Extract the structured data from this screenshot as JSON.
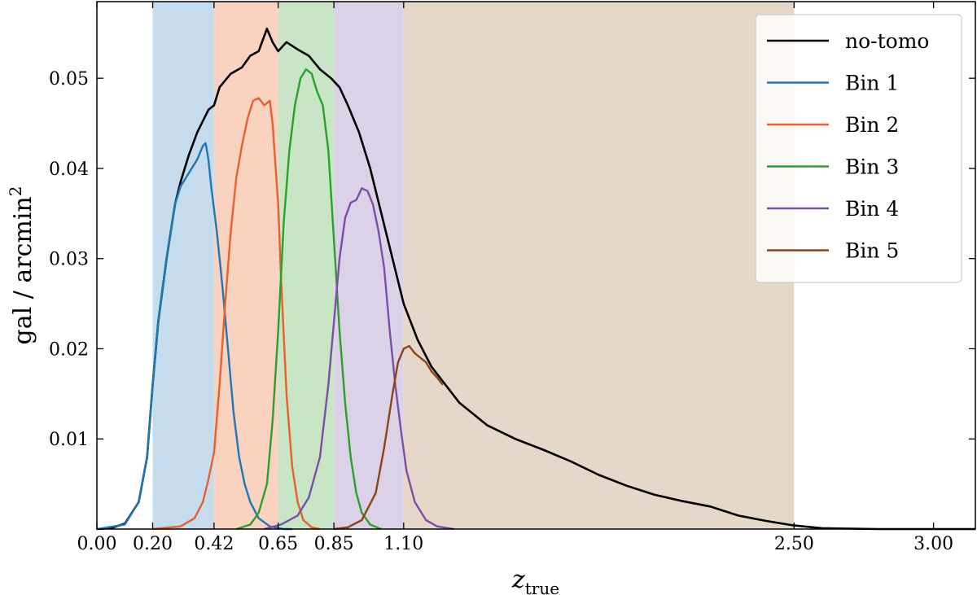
{
  "chart_data": {
    "type": "line",
    "xlabel_main": "z",
    "xlabel_sub": "true",
    "ylabel_main": "gal / arcmin",
    "ylabel_sup": "2",
    "xlim": [
      0.0,
      3.15
    ],
    "ylim": [
      0.0,
      0.0585
    ],
    "x_ticks": [
      0.0,
      0.2,
      0.42,
      0.65,
      0.85,
      1.1,
      2.5,
      3.0
    ],
    "x_tick_labels": [
      "0.00",
      "0.20",
      "0.42",
      "0.65",
      "0.85",
      "1.10",
      "2.50",
      "3.00"
    ],
    "y_ticks": [
      0.01,
      0.02,
      0.03,
      0.04,
      0.05
    ],
    "y_tick_labels": [
      "0.01",
      "0.02",
      "0.03",
      "0.04",
      "0.05"
    ],
    "legend_position": "top-right",
    "bands": [
      {
        "from": 0.2,
        "to": 0.42,
        "color": "#c4dcee"
      },
      {
        "from": 0.42,
        "to": 0.65,
        "color": "#f9d2c0"
      },
      {
        "from": 0.65,
        "to": 0.85,
        "color": "#c8e6c5"
      },
      {
        "from": 0.85,
        "to": 1.1,
        "color": "#dcd2e8"
      },
      {
        "from": 1.1,
        "to": 2.5,
        "color": "#e6d8c8"
      }
    ],
    "series": [
      {
        "name": "no-tomo",
        "color": "#000000",
        "points": [
          [
            0.0,
            0.0
          ],
          [
            0.05,
            0.0001
          ],
          [
            0.1,
            0.0006
          ],
          [
            0.15,
            0.003
          ],
          [
            0.18,
            0.008
          ],
          [
            0.2,
            0.016
          ],
          [
            0.22,
            0.023
          ],
          [
            0.25,
            0.03
          ],
          [
            0.28,
            0.036
          ],
          [
            0.3,
            0.0385
          ],
          [
            0.33,
            0.0415
          ],
          [
            0.36,
            0.044
          ],
          [
            0.4,
            0.0465
          ],
          [
            0.42,
            0.047
          ],
          [
            0.44,
            0.049
          ],
          [
            0.48,
            0.0505
          ],
          [
            0.52,
            0.0512
          ],
          [
            0.55,
            0.0525
          ],
          [
            0.58,
            0.053
          ],
          [
            0.61,
            0.0555
          ],
          [
            0.63,
            0.054
          ],
          [
            0.65,
            0.053
          ],
          [
            0.68,
            0.054
          ],
          [
            0.72,
            0.0532
          ],
          [
            0.76,
            0.0525
          ],
          [
            0.8,
            0.051
          ],
          [
            0.84,
            0.05
          ],
          [
            0.87,
            0.049
          ],
          [
            0.9,
            0.047
          ],
          [
            0.94,
            0.044
          ],
          [
            0.98,
            0.04
          ],
          [
            1.02,
            0.035
          ],
          [
            1.06,
            0.03
          ],
          [
            1.1,
            0.025
          ],
          [
            1.15,
            0.021
          ],
          [
            1.2,
            0.018
          ],
          [
            1.25,
            0.016
          ],
          [
            1.3,
            0.014
          ],
          [
            1.4,
            0.0115
          ],
          [
            1.5,
            0.01
          ],
          [
            1.6,
            0.0088
          ],
          [
            1.7,
            0.0075
          ],
          [
            1.8,
            0.006
          ],
          [
            1.9,
            0.0048
          ],
          [
            2.0,
            0.0038
          ],
          [
            2.1,
            0.0031
          ],
          [
            2.2,
            0.0025
          ],
          [
            2.3,
            0.0015
          ],
          [
            2.4,
            0.0009
          ],
          [
            2.5,
            0.0004
          ],
          [
            2.6,
            0.0001
          ],
          [
            2.8,
            0.0
          ],
          [
            3.15,
            0.0
          ]
        ]
      },
      {
        "name": "Bin 1",
        "color": "#1f77b4",
        "points": [
          [
            0.0,
            0.0
          ],
          [
            0.1,
            0.0005
          ],
          [
            0.15,
            0.003
          ],
          [
            0.18,
            0.008
          ],
          [
            0.2,
            0.016
          ],
          [
            0.22,
            0.023
          ],
          [
            0.25,
            0.03
          ],
          [
            0.28,
            0.036
          ],
          [
            0.3,
            0.038
          ],
          [
            0.33,
            0.0395
          ],
          [
            0.36,
            0.041
          ],
          [
            0.38,
            0.0425
          ],
          [
            0.39,
            0.0428
          ],
          [
            0.4,
            0.041
          ],
          [
            0.41,
            0.038
          ],
          [
            0.43,
            0.033
          ],
          [
            0.45,
            0.027
          ],
          [
            0.47,
            0.02
          ],
          [
            0.49,
            0.013
          ],
          [
            0.51,
            0.008
          ],
          [
            0.53,
            0.005
          ],
          [
            0.55,
            0.003
          ],
          [
            0.58,
            0.0012
          ],
          [
            0.62,
            0.0003
          ],
          [
            0.67,
            0.0
          ],
          [
            0.7,
            0.0
          ]
        ]
      },
      {
        "name": "Bin 2",
        "color": "#e8602c",
        "points": [
          [
            0.2,
            0.0
          ],
          [
            0.3,
            0.0003
          ],
          [
            0.35,
            0.0012
          ],
          [
            0.38,
            0.003
          ],
          [
            0.4,
            0.0055
          ],
          [
            0.42,
            0.0085
          ],
          [
            0.44,
            0.016
          ],
          [
            0.46,
            0.025
          ],
          [
            0.48,
            0.033
          ],
          [
            0.5,
            0.039
          ],
          [
            0.52,
            0.0425
          ],
          [
            0.54,
            0.0455
          ],
          [
            0.56,
            0.0475
          ],
          [
            0.58,
            0.0478
          ],
          [
            0.6,
            0.047
          ],
          [
            0.62,
            0.0475
          ],
          [
            0.63,
            0.045
          ],
          [
            0.65,
            0.036
          ],
          [
            0.66,
            0.028
          ],
          [
            0.68,
            0.015
          ],
          [
            0.7,
            0.007
          ],
          [
            0.72,
            0.003
          ],
          [
            0.74,
            0.001
          ],
          [
            0.77,
            0.0002
          ],
          [
            0.8,
            0.0
          ]
        ]
      },
      {
        "name": "Bin 3",
        "color": "#2ca02c",
        "points": [
          [
            0.5,
            0.0
          ],
          [
            0.55,
            0.0005
          ],
          [
            0.58,
            0.0018
          ],
          [
            0.61,
            0.005
          ],
          [
            0.63,
            0.012
          ],
          [
            0.65,
            0.022
          ],
          [
            0.67,
            0.034
          ],
          [
            0.69,
            0.042
          ],
          [
            0.71,
            0.047
          ],
          [
            0.73,
            0.05
          ],
          [
            0.75,
            0.051
          ],
          [
            0.77,
            0.0505
          ],
          [
            0.79,
            0.0485
          ],
          [
            0.81,
            0.047
          ],
          [
            0.83,
            0.042
          ],
          [
            0.85,
            0.032
          ],
          [
            0.87,
            0.022
          ],
          [
            0.89,
            0.014
          ],
          [
            0.91,
            0.008
          ],
          [
            0.93,
            0.004
          ],
          [
            0.95,
            0.0018
          ],
          [
            0.98,
            0.0005
          ],
          [
            1.02,
            0.0
          ]
        ]
      },
      {
        "name": "Bin 4",
        "color": "#7b4fa6",
        "points": [
          [
            0.6,
            0.0
          ],
          [
            0.66,
            0.0005
          ],
          [
            0.72,
            0.0015
          ],
          [
            0.76,
            0.0035
          ],
          [
            0.8,
            0.008
          ],
          [
            0.83,
            0.016
          ],
          [
            0.85,
            0.023
          ],
          [
            0.87,
            0.03
          ],
          [
            0.89,
            0.0345
          ],
          [
            0.91,
            0.0362
          ],
          [
            0.93,
            0.0365
          ],
          [
            0.95,
            0.0378
          ],
          [
            0.97,
            0.0375
          ],
          [
            0.99,
            0.036
          ],
          [
            1.01,
            0.033
          ],
          [
            1.03,
            0.029
          ],
          [
            1.05,
            0.022
          ],
          [
            1.07,
            0.016
          ],
          [
            1.09,
            0.011
          ],
          [
            1.11,
            0.0065
          ],
          [
            1.14,
            0.003
          ],
          [
            1.18,
            0.001
          ],
          [
            1.22,
            0.0003
          ],
          [
            1.28,
            0.0
          ]
        ]
      },
      {
        "name": "Bin 5",
        "color": "#8b4513",
        "points": [
          [
            0.85,
            0.0
          ],
          [
            0.9,
            0.0002
          ],
          [
            0.95,
            0.001
          ],
          [
            1.0,
            0.004
          ],
          [
            1.03,
            0.009
          ],
          [
            1.06,
            0.015
          ],
          [
            1.08,
            0.0185
          ],
          [
            1.1,
            0.02
          ],
          [
            1.12,
            0.0203
          ],
          [
            1.14,
            0.0195
          ],
          [
            1.16,
            0.019
          ],
          [
            1.18,
            0.0185
          ],
          [
            1.2,
            0.0175
          ],
          [
            1.22,
            0.0168
          ],
          [
            1.24,
            0.016
          ]
        ]
      }
    ]
  }
}
